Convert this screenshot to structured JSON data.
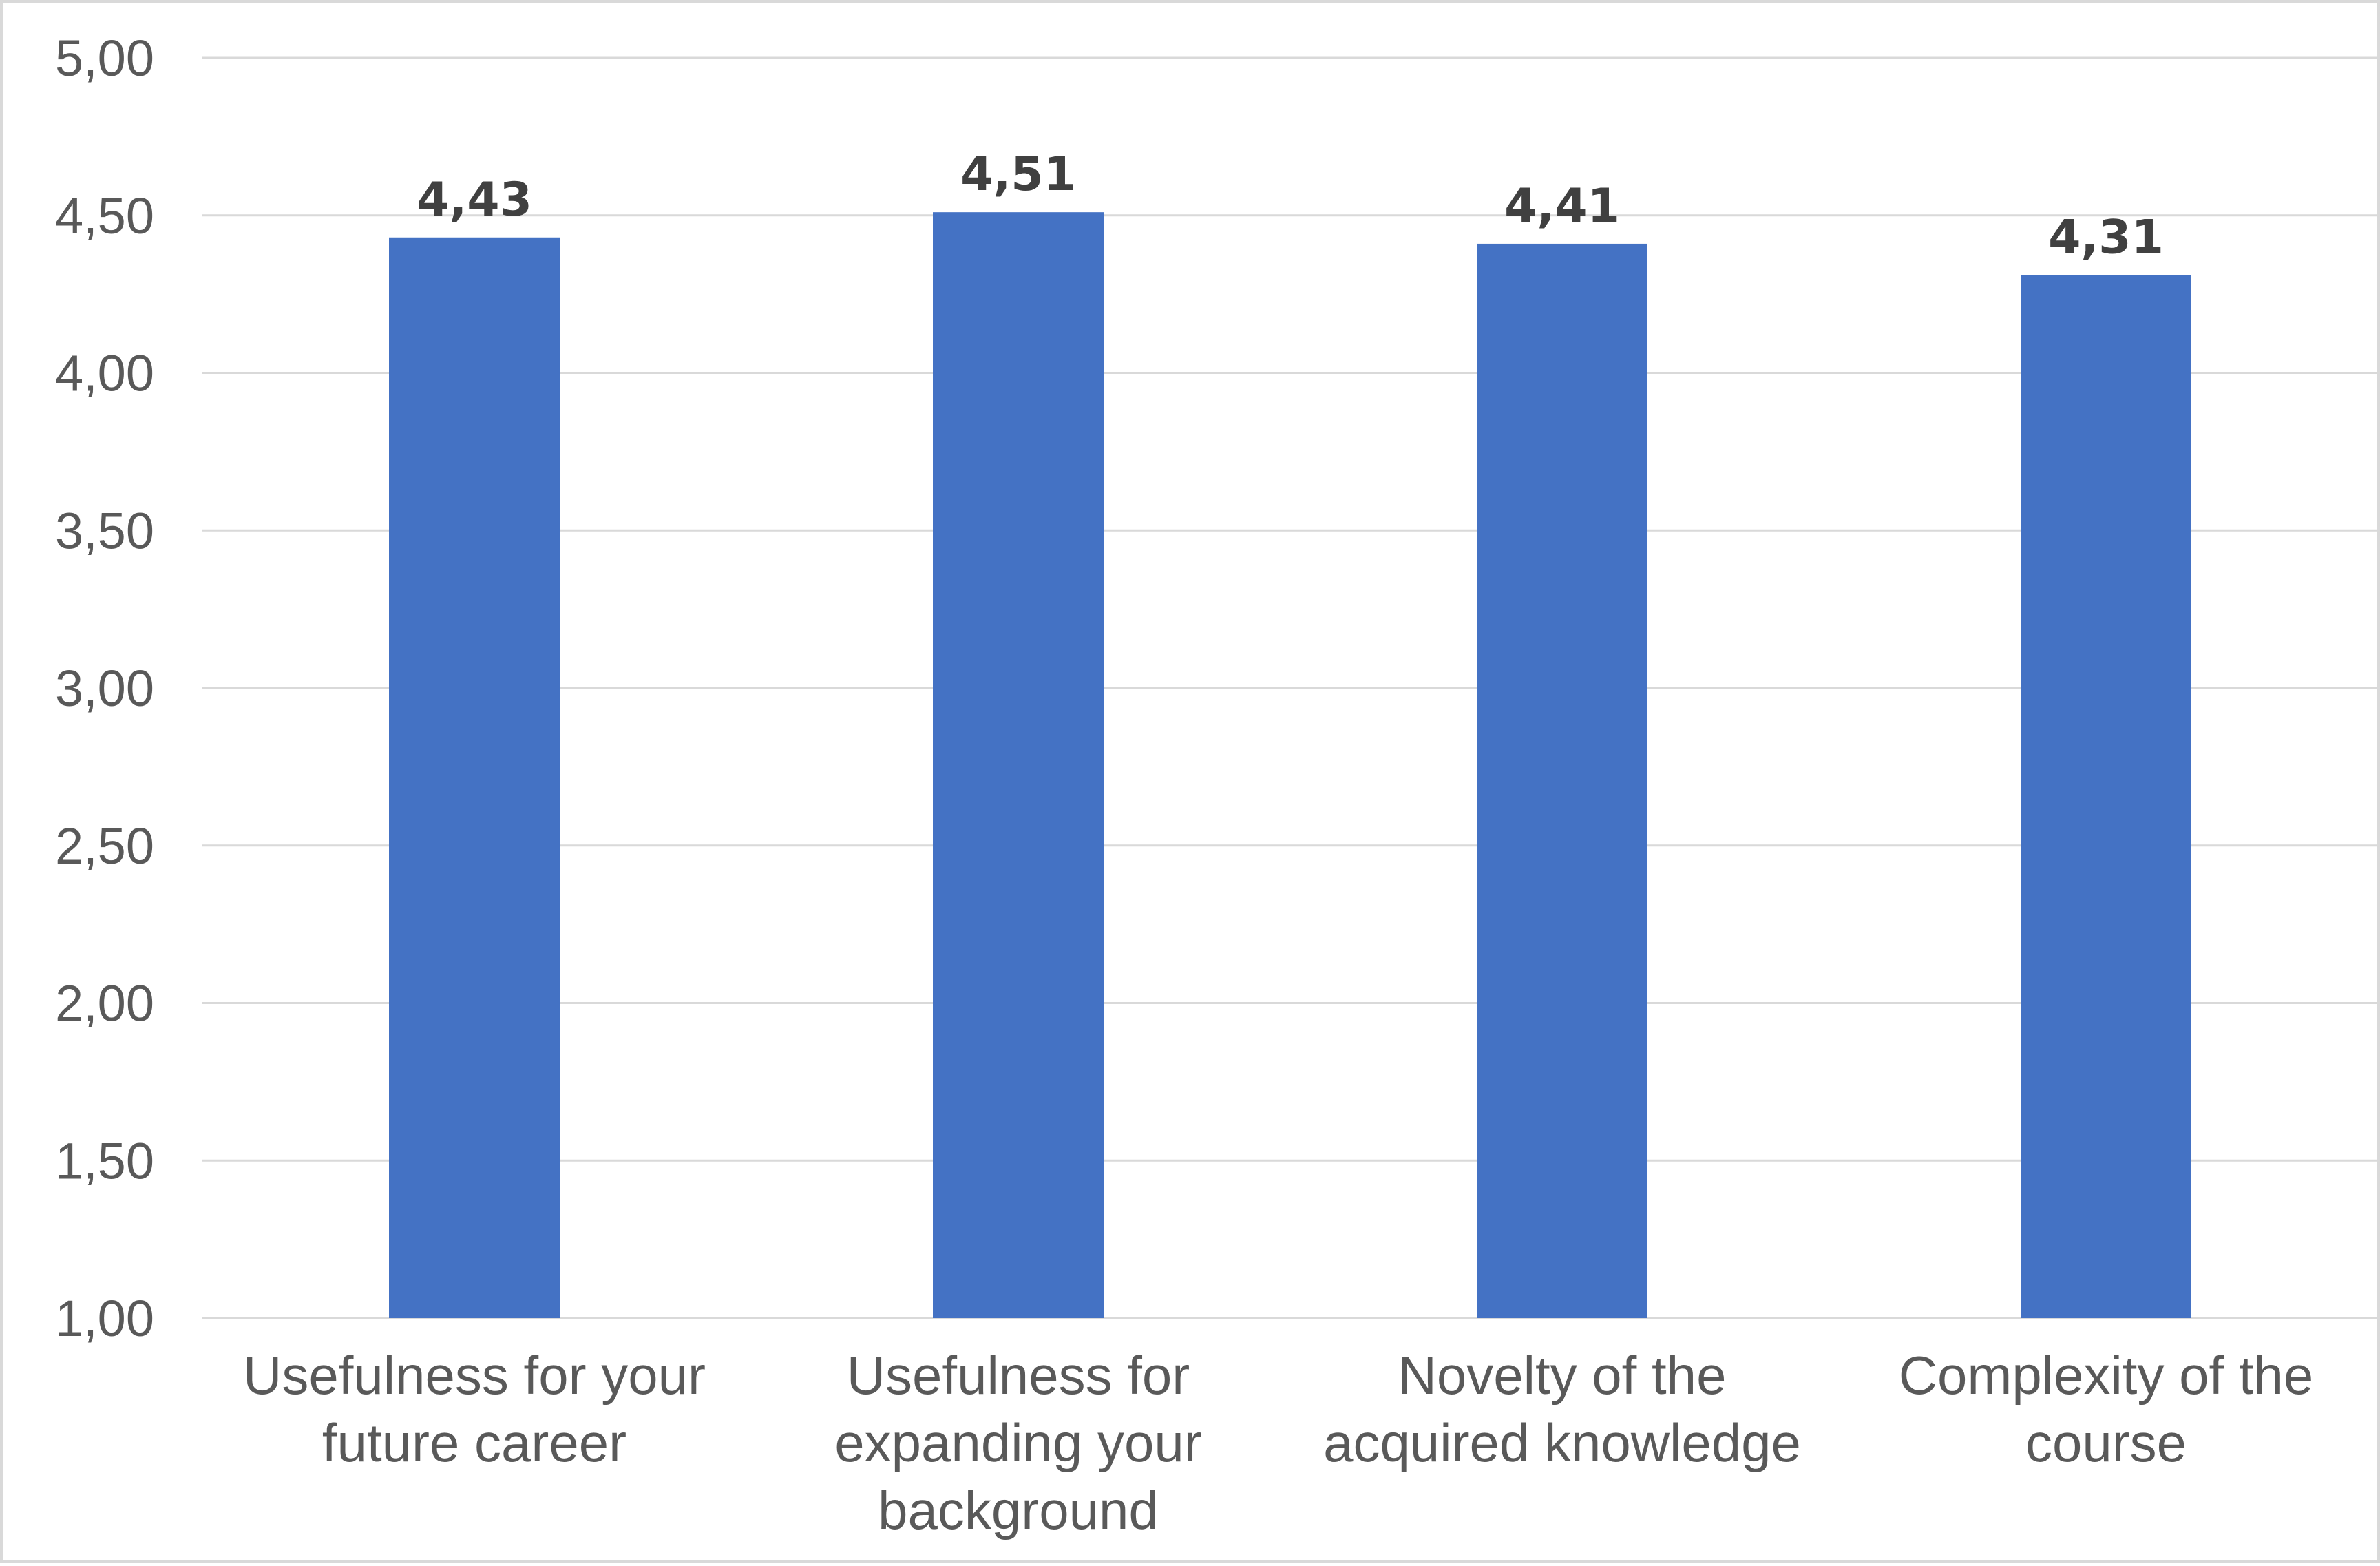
{
  "chart_data": {
    "type": "bar",
    "categories": [
      [
        "Usefulness for your",
        "future career"
      ],
      [
        "Usefulness for",
        "expanding your",
        "background"
      ],
      [
        "Novelty of the",
        "acquired knowledge"
      ],
      [
        "Complexity of the",
        "course"
      ]
    ],
    "values": [
      4.43,
      4.51,
      4.41,
      4.31
    ],
    "value_labels": [
      "4,43",
      "4,51",
      "4,41",
      "4,31"
    ],
    "ylim": [
      1.0,
      5.0
    ],
    "y_ticks": [
      1.0,
      1.5,
      2.0,
      2.5,
      3.0,
      3.5,
      4.0,
      4.5,
      5.0
    ],
    "y_tick_labels": [
      "1,00",
      "1,50",
      "2,00",
      "2,50",
      "3,00",
      "3,50",
      "4,00",
      "4,50",
      "5,00"
    ],
    "grid": true,
    "legend": "none",
    "bar_color": "#4472C4",
    "title": "",
    "xlabel": "",
    "ylabel": ""
  }
}
